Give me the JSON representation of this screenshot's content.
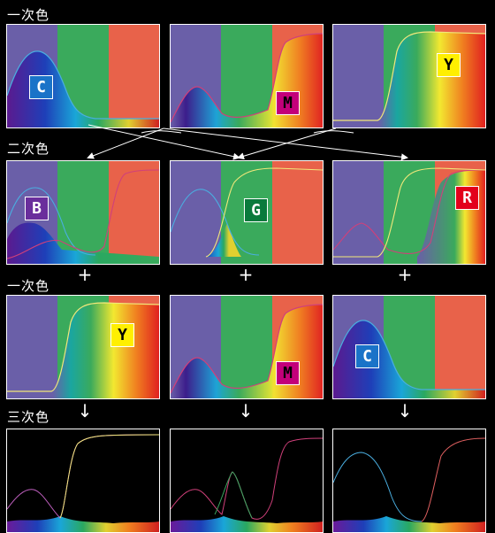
{
  "labels": {
    "primary_top": "一次色",
    "secondary": "二次色",
    "primary_mid": "一次色",
    "tertiary": "三次色"
  },
  "operators": {
    "plus": "+",
    "arrow": "↓"
  },
  "badges": {
    "c": {
      "text": "C",
      "bg": "#1a73c8",
      "fg": "#ffffff"
    },
    "m": {
      "text": "M",
      "bg": "#c3007a",
      "fg": "#000000"
    },
    "y": {
      "text": "Y",
      "bg": "#ffef00",
      "fg": "#000000"
    },
    "b": {
      "text": "B",
      "bg": "#6a2e9c",
      "fg": "#ffffff"
    },
    "g": {
      "text": "G",
      "bg": "#0a7a3c",
      "fg": "#ffffff"
    },
    "r": {
      "text": "R",
      "bg": "#e3001b",
      "fg": "#ffffff"
    }
  },
  "colors": {
    "band_blue": "#6a5fa8",
    "band_green": "#3aaa5c",
    "band_red": "#e8624a",
    "curve_cyan": "#4aaee0",
    "curve_magenta": "#d0407a",
    "curve_yellow": "#f2e87a",
    "curve_green": "#3aa860"
  }
}
